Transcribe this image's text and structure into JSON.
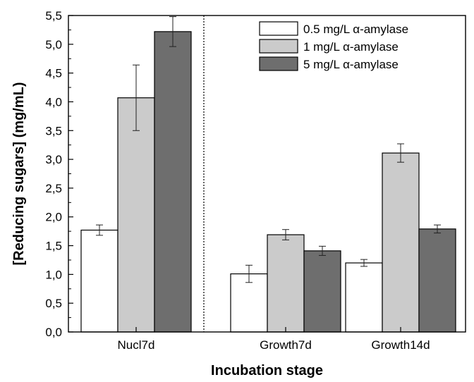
{
  "chart_data": {
    "type": "bar",
    "xlabel": "Incubation stage",
    "ylabel": "[Reducing sugars] (mg/mL)",
    "categories": [
      "Nucl7d",
      "Growth7d",
      "Growth14d"
    ],
    "series": [
      {
        "name": "0.5 mg/L α-amylase",
        "values": [
          1.77,
          1.01,
          1.2
        ],
        "errors": [
          0.09,
          0.15,
          0.06
        ],
        "color": "#ffffff"
      },
      {
        "name": "1 mg/L α-amylase",
        "values": [
          4.07,
          1.69,
          3.11
        ],
        "errors": [
          0.57,
          0.09,
          0.16
        ],
        "color": "#cbcbcb"
      },
      {
        "name": "5 mg/L α-amylase",
        "values": [
          5.22,
          1.41,
          1.79
        ],
        "errors": [
          0.26,
          0.08,
          0.07
        ],
        "color": "#6e6e6e"
      }
    ],
    "ylim": [
      0,
      5.5
    ],
    "yticks": [
      "0,0",
      "0,5",
      "1,0",
      "1,5",
      "2,0",
      "2,5",
      "3,0",
      "3,5",
      "4,0",
      "4,5",
      "5,0",
      "5,5"
    ],
    "legend_position": "top-right",
    "separator_after_category": "Nucl7d",
    "grid": false
  }
}
